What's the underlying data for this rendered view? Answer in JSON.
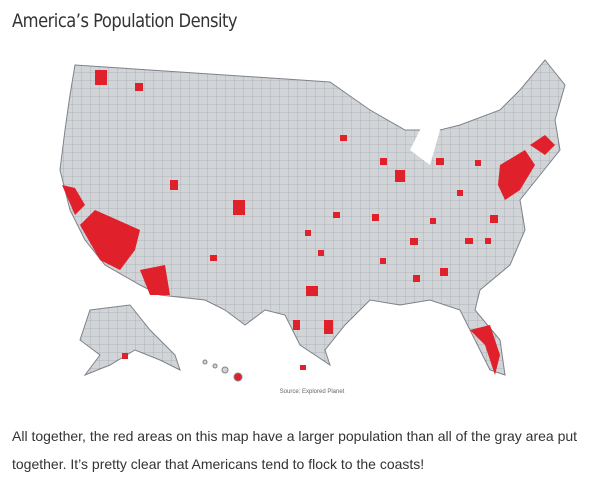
{
  "header": {
    "title": "America’s Population Density"
  },
  "map": {
    "source": "Source: Explored Planet"
  },
  "body": {
    "paragraph": "All together, the red areas on this map have a larger population than all of the gray area put together. It’s pretty clear that Americans tend to flock to the coasts!"
  }
}
